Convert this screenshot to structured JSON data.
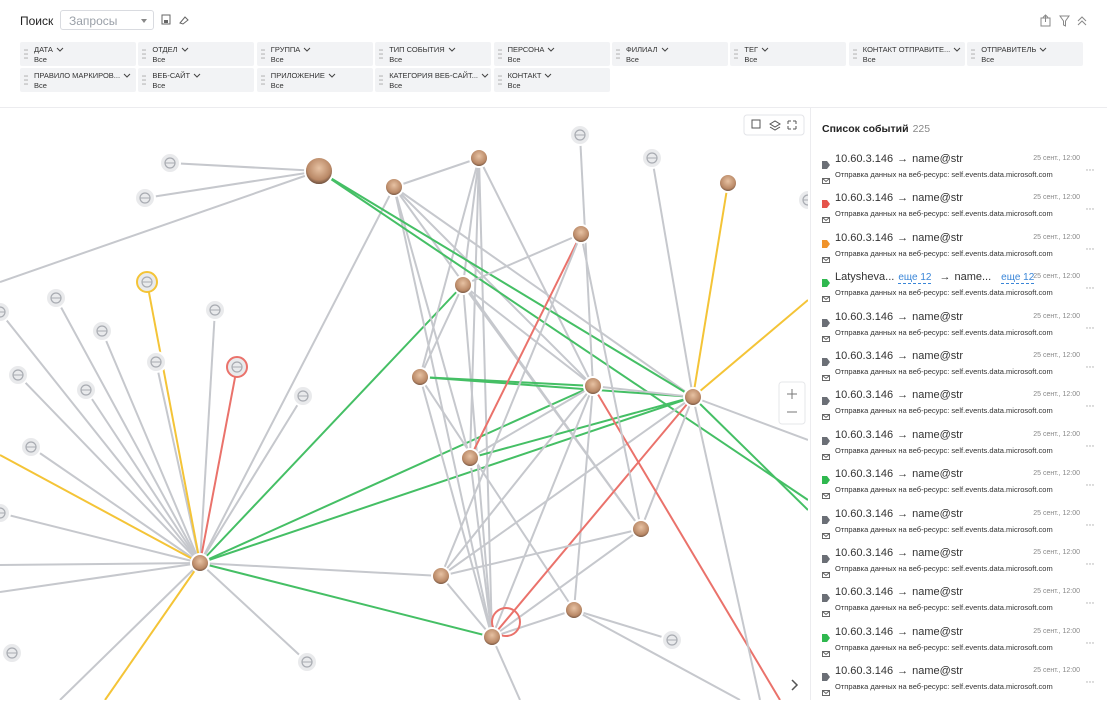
{
  "header": {
    "search_label": "Поиск",
    "query_select": "Запросы"
  },
  "filters": [
    {
      "label": "ДАТА",
      "value": "Все"
    },
    {
      "label": "ОТДЕЛ",
      "value": "Все"
    },
    {
      "label": "ГРУППА",
      "value": "Все"
    },
    {
      "label": "ТИП СОБЫТИЯ",
      "value": "Все"
    },
    {
      "label": "ПЕРСОНА",
      "value": "Все"
    },
    {
      "label": "ФИЛИАЛ",
      "value": "Все"
    },
    {
      "label": "ТЕГ",
      "value": "Все"
    },
    {
      "label": "КОНТАКТ ОТПРАВИТЕ...",
      "value": "Все"
    },
    {
      "label": "ОТПРАВИТЕЛЬ",
      "value": "Все"
    },
    {
      "label": "ПРАВИЛО МАРКИРОВ...",
      "value": "Все"
    },
    {
      "label": "ВЕБ-САЙТ",
      "value": "Все"
    },
    {
      "label": "ПРИЛОЖЕНИЕ",
      "value": "Все"
    },
    {
      "label": "КАТЕГОРИЯ ВЕБ-САЙТ...",
      "value": "Все"
    },
    {
      "label": "КОНТАКТ",
      "value": "Все"
    }
  ],
  "events": {
    "title": "Список событий",
    "count": 225,
    "arrow": "→",
    "items": [
      {
        "color": "#6b6f76",
        "source": "10.60.3.146",
        "target": "name@str",
        "time": "25 сент., 12:00",
        "text": "Отправка данных на веб-ресурс: self.events.data.microsoft.com"
      },
      {
        "color": "#e5534b",
        "source": "10.60.3.146",
        "target": "name@str",
        "time": "25 сент., 12:00",
        "text": "Отправка данных на веб-ресурс: self.events.data.microsoft.com"
      },
      {
        "color": "#f0932b",
        "source": "10.60.3.146",
        "target": "name@str",
        "time": "25 сент., 12:00",
        "text": "Отправка данных на веб-ресурс: self.events.data.microsoft.com"
      },
      {
        "color": "#2fb84f",
        "source": "Latyshevа...",
        "source_more": "еще 12",
        "target": "name...",
        "target_more": "еще 12",
        "time": "25 сент., 12:00",
        "text": "Отправка данных на веб-ресурс: self.events.data.microsoft.com"
      },
      {
        "color": "#6b6f76",
        "source": "10.60.3.146",
        "target": "name@str",
        "time": "25 сент., 12:00",
        "text": "Отправка данных на веб-ресурс: self.events.data.microsoft.com"
      },
      {
        "color": "#6b6f76",
        "source": "10.60.3.146",
        "target": "name@str",
        "time": "25 сент., 12:00",
        "text": "Отправка данных на веб-ресурс: self.events.data.microsoft.com"
      },
      {
        "color": "#6b6f76",
        "source": "10.60.3.146",
        "target": "name@str",
        "time": "25 сент., 12:00",
        "text": "Отправка данных на веб-ресурс: self.events.data.microsoft.com"
      },
      {
        "color": "#6b6f76",
        "source": "10.60.3.146",
        "target": "name@str",
        "time": "25 сент., 12:00",
        "text": "Отправка данных на веб-ресурс: self.events.data.microsoft.com"
      },
      {
        "color": "#2fb84f",
        "source": "10.60.3.146",
        "target": "name@str",
        "time": "25 сент., 12:00",
        "text": "Отправка данных на веб-ресурс: self.events.data.microsoft.com"
      },
      {
        "color": "#6b6f76",
        "source": "10.60.3.146",
        "target": "name@str",
        "time": "25 сент., 12:00",
        "text": "Отправка данных на веб-ресурс: self.events.data.microsoft.com"
      },
      {
        "color": "#6b6f76",
        "source": "10.60.3.146",
        "target": "name@str",
        "time": "25 сент., 12:00",
        "text": "Отправка данных на веб-ресурс: self.events.data.microsoft.com"
      },
      {
        "color": "#6b6f76",
        "source": "10.60.3.146",
        "target": "name@str",
        "time": "25 сент., 12:00",
        "text": "Отправка данных на веб-ресурс: self.events.data.microsoft.com"
      },
      {
        "color": "#2fb84f",
        "source": "10.60.3.146",
        "target": "name@str",
        "time": "25 сент., 12:00",
        "text": "Отправка данных на веб-ресурс: self.events.data.microsoft.com"
      },
      {
        "color": "#6b6f76",
        "source": "10.60.3.146",
        "target": "name@str",
        "time": "25 сент., 12:00",
        "text": "Отправка данных на веб-ресурс: self.events.data.microsoft.com"
      }
    ]
  }
}
